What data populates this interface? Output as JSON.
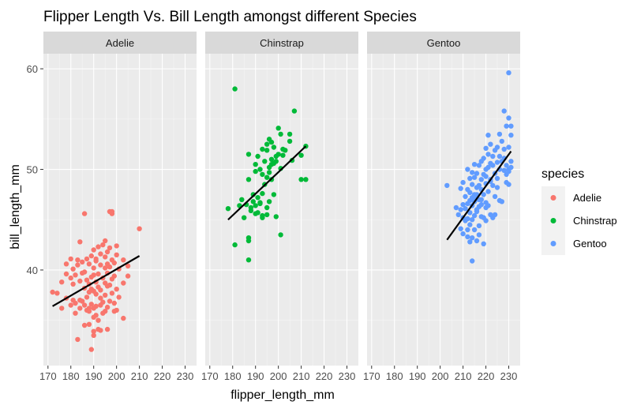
{
  "chart_data": {
    "type": "scatter",
    "title": "Flipper Length Vs. Bill Length amongst different Species",
    "xlabel": "flipper_length_mm",
    "ylabel": "bill_length_mm",
    "xlim": [
      168,
      235
    ],
    "ylim": [
      30.5,
      61.5
    ],
    "x_ticks": [
      170,
      180,
      190,
      200,
      210,
      220,
      230
    ],
    "y_ticks": [
      40,
      50,
      60
    ],
    "grid": true,
    "legend": {
      "title": "species",
      "position": "right",
      "entries": [
        "Adelie",
        "Chinstrap",
        "Gentoo"
      ]
    },
    "facets": [
      {
        "name": "Adelie",
        "color": "#F8766D",
        "trend": {
          "x": [
            172,
            210
          ],
          "y": [
            36.4,
            41.4
          ]
        },
        "points": [
          [
            172,
            37.8
          ],
          [
            174,
            37.7
          ],
          [
            176,
            36.2
          ],
          [
            176,
            38.8
          ],
          [
            178,
            37.2
          ],
          [
            178,
            39.6
          ],
          [
            180,
            41.1
          ],
          [
            180,
            36.5
          ],
          [
            180,
            39.2
          ],
          [
            181,
            40.1
          ],
          [
            181,
            37.0
          ],
          [
            181,
            38.6
          ],
          [
            182,
            35.7
          ],
          [
            182,
            39.5
          ],
          [
            182,
            36.7
          ],
          [
            183,
            41.0
          ],
          [
            183,
            40.5
          ],
          [
            183,
            33.1
          ],
          [
            184,
            37.0
          ],
          [
            184,
            36.2
          ],
          [
            184,
            38.9
          ],
          [
            185,
            39.7
          ],
          [
            185,
            36.9
          ],
          [
            185,
            40.8
          ],
          [
            186,
            36.5
          ],
          [
            186,
            39.8
          ],
          [
            186,
            38.2
          ],
          [
            186,
            34.5
          ],
          [
            187,
            39.0
          ],
          [
            187,
            41.1
          ],
          [
            187,
            36.0
          ],
          [
            187,
            37.3
          ],
          [
            188,
            40.6
          ],
          [
            188,
            35.9
          ],
          [
            188,
            37.8
          ],
          [
            188,
            38.6
          ],
          [
            188,
            34.6
          ],
          [
            189,
            39.3
          ],
          [
            189,
            36.6
          ],
          [
            189,
            41.4
          ],
          [
            189,
            38.1
          ],
          [
            190,
            39.5
          ],
          [
            190,
            35.3
          ],
          [
            190,
            37.9
          ],
          [
            190,
            40.2
          ],
          [
            190,
            42.0
          ],
          [
            190,
            33.5
          ],
          [
            190,
            36.2
          ],
          [
            191,
            38.8
          ],
          [
            191,
            41.1
          ],
          [
            191,
            37.6
          ],
          [
            191,
            35.5
          ],
          [
            191,
            40.9
          ],
          [
            191,
            36.4
          ],
          [
            192,
            39.6
          ],
          [
            192,
            42.3
          ],
          [
            192,
            38.3
          ],
          [
            192,
            35.0
          ],
          [
            193,
            40.5
          ],
          [
            193,
            37.2
          ],
          [
            193,
            41.6
          ],
          [
            193,
            34.0
          ],
          [
            193,
            38.0
          ],
          [
            194,
            39.2
          ],
          [
            194,
            42.5
          ],
          [
            194,
            36.8
          ],
          [
            194,
            35.7
          ],
          [
            195,
            41.3
          ],
          [
            195,
            38.7
          ],
          [
            195,
            40.2
          ],
          [
            195,
            37.5
          ],
          [
            195,
            35.9
          ],
          [
            195,
            42.9
          ],
          [
            196,
            39.7
          ],
          [
            196,
            36.3
          ],
          [
            196,
            41.8
          ],
          [
            196,
            38.4
          ],
          [
            196,
            34.1
          ],
          [
            197,
            42.2
          ],
          [
            197,
            38.5
          ],
          [
            197,
            40.3
          ],
          [
            197,
            36.9
          ],
          [
            197,
            45.8
          ],
          [
            198,
            39.1
          ],
          [
            198,
            41.0
          ],
          [
            198,
            37.7
          ],
          [
            198,
            45.6
          ],
          [
            199,
            40.7
          ],
          [
            199,
            36.7
          ],
          [
            199,
            39.4
          ],
          [
            200,
            41.5
          ],
          [
            200,
            38.1
          ],
          [
            200,
            36.0
          ],
          [
            200,
            42.4
          ],
          [
            201,
            40.1
          ],
          [
            201,
            37.3
          ],
          [
            203,
            41.0
          ],
          [
            203,
            38.7
          ],
          [
            203,
            35.2
          ],
          [
            205,
            40.4
          ],
          [
            205,
            39.4
          ],
          [
            210,
            44.1
          ],
          [
            186,
            45.6
          ],
          [
            189,
            32.1
          ],
          [
            184,
            42.8
          ],
          [
            178,
            40.6
          ],
          [
            190,
            33.9
          ],
          [
            199,
            35.9
          ],
          [
            198,
            45.8
          ],
          [
            192,
            34.1
          ],
          [
            193,
            36.5
          ],
          [
            188,
            36.2
          ],
          [
            196,
            40.6
          ]
        ]
      },
      {
        "name": "Chinstrap",
        "color": "#00BA38",
        "trend": {
          "x": [
            178,
            212
          ],
          "y": [
            45.0,
            52.3
          ]
        },
        "points": [
          [
            178,
            46.1
          ],
          [
            181,
            42.5
          ],
          [
            181,
            58.0
          ],
          [
            183,
            46.4
          ],
          [
            184,
            47.0
          ],
          [
            185,
            45.2
          ],
          [
            186,
            46.5
          ],
          [
            187,
            49.0
          ],
          [
            187,
            51.5
          ],
          [
            187,
            41.0
          ],
          [
            187,
            42.9
          ],
          [
            187,
            43.2
          ],
          [
            188,
            45.9
          ],
          [
            188,
            46.2
          ],
          [
            189,
            47.5
          ],
          [
            189,
            46.8
          ],
          [
            190,
            50.5
          ],
          [
            190,
            46.4
          ],
          [
            190,
            49.8
          ],
          [
            190,
            45.6
          ],
          [
            191,
            51.3
          ],
          [
            191,
            47.2
          ],
          [
            191,
            45.7
          ],
          [
            192,
            50.0
          ],
          [
            192,
            46.6
          ],
          [
            192,
            46.7
          ],
          [
            193,
            49.5
          ],
          [
            193,
            47.6
          ],
          [
            193,
            45.4
          ],
          [
            193,
            52.0
          ],
          [
            193,
            45.2
          ],
          [
            194,
            50.8
          ],
          [
            194,
            48.5
          ],
          [
            195,
            49.2
          ],
          [
            195,
            51.9
          ],
          [
            195,
            45.5
          ],
          [
            195,
            52.5
          ],
          [
            196,
            50.2
          ],
          [
            196,
            49.7
          ],
          [
            196,
            46.8
          ],
          [
            196,
            53.0
          ],
          [
            197,
            51.0
          ],
          [
            197,
            49.0
          ],
          [
            197,
            50.5
          ],
          [
            197,
            52.7
          ],
          [
            198,
            50.6
          ],
          [
            198,
            47.5
          ],
          [
            198,
            52.2
          ],
          [
            199,
            51.3
          ],
          [
            199,
            50.8
          ],
          [
            199,
            45.3
          ],
          [
            200,
            51.5
          ],
          [
            200,
            54.1
          ],
          [
            201,
            50.1
          ],
          [
            201,
            53.5
          ],
          [
            201,
            43.5
          ],
          [
            202,
            51.4
          ],
          [
            202,
            52.0
          ],
          [
            203,
            51.9
          ],
          [
            205,
            53.5
          ],
          [
            205,
            52.8
          ],
          [
            206,
            50.9
          ],
          [
            207,
            55.8
          ],
          [
            210,
            49.0
          ],
          [
            212,
            49.0
          ],
          [
            212,
            52.3
          ],
          [
            210,
            51.4
          ],
          [
            195,
            46.2
          ]
        ]
      },
      {
        "name": "Gentoo",
        "color": "#619CFF",
        "trend": {
          "x": [
            203,
            231
          ],
          "y": [
            43.0,
            51.8
          ]
        },
        "points": [
          [
            203,
            48.4
          ],
          [
            207,
            46.2
          ],
          [
            208,
            45.5
          ],
          [
            209,
            44.1
          ],
          [
            209,
            46.0
          ],
          [
            210,
            46.5
          ],
          [
            210,
            45.2
          ],
          [
            210,
            48.7
          ],
          [
            210,
            43.6
          ],
          [
            211,
            47.3
          ],
          [
            211,
            46.1
          ],
          [
            211,
            44.9
          ],
          [
            212,
            46.6
          ],
          [
            212,
            45.1
          ],
          [
            212,
            48.0
          ],
          [
            212,
            50.0
          ],
          [
            212,
            43.3
          ],
          [
            213,
            46.9
          ],
          [
            213,
            45.7
          ],
          [
            213,
            47.7
          ],
          [
            213,
            49.1
          ],
          [
            213,
            44.5
          ],
          [
            214,
            46.4
          ],
          [
            214,
            48.5
          ],
          [
            214,
            45.0
          ],
          [
            214,
            49.7
          ],
          [
            214,
            47.2
          ],
          [
            214,
            43.2
          ],
          [
            215,
            46.8
          ],
          [
            215,
            49.2
          ],
          [
            215,
            45.4
          ],
          [
            215,
            47.5
          ],
          [
            215,
            44.0
          ],
          [
            215,
            50.5
          ],
          [
            216,
            47.1
          ],
          [
            216,
            49.6
          ],
          [
            216,
            45.8
          ],
          [
            216,
            48.2
          ],
          [
            216,
            42.9
          ],
          [
            216,
            46.0
          ],
          [
            217,
            48.4
          ],
          [
            217,
            46.3
          ],
          [
            217,
            50.4
          ],
          [
            217,
            44.4
          ],
          [
            217,
            47.0
          ],
          [
            218,
            49.0
          ],
          [
            218,
            46.5
          ],
          [
            218,
            50.8
          ],
          [
            218,
            45.3
          ],
          [
            218,
            48.0
          ],
          [
            219,
            49.5
          ],
          [
            219,
            47.5
          ],
          [
            219,
            45.2
          ],
          [
            219,
            51.1
          ],
          [
            220,
            49.3
          ],
          [
            220,
            50.0
          ],
          [
            220,
            46.7
          ],
          [
            220,
            48.6
          ],
          [
            220,
            52.1
          ],
          [
            220,
            44.9
          ],
          [
            221,
            50.2
          ],
          [
            221,
            47.8
          ],
          [
            221,
            51.5
          ],
          [
            221,
            46.4
          ],
          [
            222,
            49.0
          ],
          [
            222,
            50.6
          ],
          [
            222,
            45.5
          ],
          [
            222,
            52.5
          ],
          [
            223,
            50.4
          ],
          [
            223,
            48.4
          ],
          [
            223,
            51.3
          ],
          [
            224,
            49.6
          ],
          [
            224,
            51.9
          ],
          [
            224,
            47.3
          ],
          [
            225,
            50.7
          ],
          [
            225,
            49.1
          ],
          [
            225,
            52.2
          ],
          [
            225,
            48.2
          ],
          [
            226,
            51.3
          ],
          [
            226,
            50.0
          ],
          [
            226,
            46.9
          ],
          [
            227,
            50.8
          ],
          [
            227,
            52.8
          ],
          [
            228,
            51.1
          ],
          [
            228,
            49.9
          ],
          [
            228,
            55.8
          ],
          [
            228,
            52.0
          ],
          [
            229,
            50.4
          ],
          [
            229,
            49.5
          ],
          [
            229,
            54.3
          ],
          [
            229,
            48.7
          ],
          [
            230,
            55.1
          ],
          [
            230,
            50.0
          ],
          [
            230,
            59.6
          ],
          [
            230,
            52.2
          ],
          [
            230,
            48.5
          ],
          [
            230,
            49.8
          ],
          [
            231,
            50.8
          ],
          [
            231,
            54.3
          ],
          [
            231,
            50.2
          ],
          [
            231,
            53.4
          ],
          [
            214,
            40.9
          ],
          [
            221,
            53.4
          ],
          [
            219,
            42.6
          ],
          [
            216,
            47.5
          ],
          [
            223,
            45.2
          ],
          [
            227,
            46.8
          ],
          [
            212,
            44.0
          ],
          [
            217,
            43.5
          ],
          [
            224,
            45.5
          ],
          [
            222,
            48.8
          ],
          [
            218,
            47.0
          ],
          [
            213,
            42.8
          ],
          [
            226,
            53.5
          ],
          [
            220,
            46.2
          ],
          [
            209,
            48.1
          ]
        ]
      }
    ]
  }
}
